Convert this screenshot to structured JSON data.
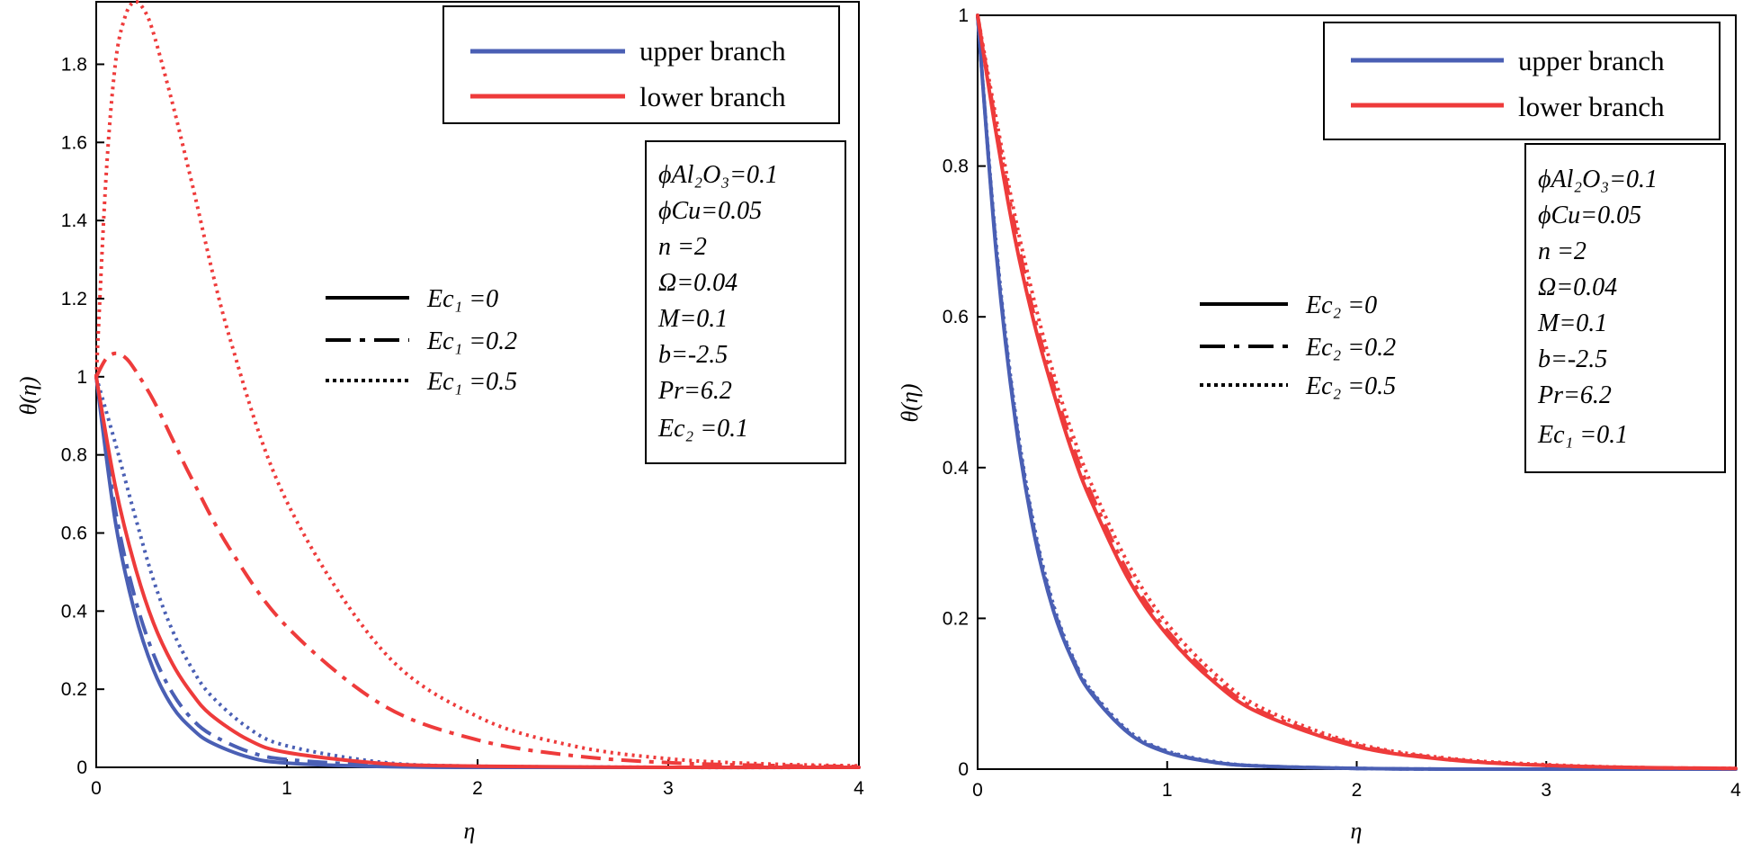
{
  "colors": {
    "upper": "#4a5fb4",
    "lower": "#ee3b3b",
    "axis": "#000000"
  },
  "chart_data": [
    {
      "type": "line",
      "title": "",
      "xlabel": "η",
      "ylabel": "θ(η)",
      "xlim": [
        0,
        4
      ],
      "ylim": [
        0,
        1.96
      ],
      "xticks": [
        "0",
        "1",
        "2",
        "3",
        "4"
      ],
      "yticks": [
        "0",
        "0.2",
        "0.4",
        "0.6",
        "0.8",
        "1",
        "1.2",
        "1.4",
        "1.6",
        "1.8"
      ],
      "legend": [
        "upper branch",
        "lower branch"
      ],
      "style_legend": [
        "Ec₁ =0",
        "Ec₁ =0.2",
        "Ec₁ =0.5"
      ],
      "params": [
        "ϕAl₂O₃=0.1",
        "ϕCu=0.05",
        "n =2",
        "Ω=0.04",
        "M=0.1",
        "b=-2.5",
        "Pr=6.2",
        "Ec₂ =0.1"
      ],
      "series": [
        {
          "name": "upper branch, Ec₁ =0",
          "branch": "upper",
          "dash": "solid",
          "x": [
            0,
            0.1,
            0.2,
            0.3,
            0.4,
            0.5,
            0.6,
            0.8,
            1.0,
            1.5,
            2,
            3,
            4
          ],
          "y": [
            1,
            0.63,
            0.4,
            0.25,
            0.155,
            0.1,
            0.064,
            0.026,
            0.011,
            0.002,
            0,
            0,
            0
          ]
        },
        {
          "name": "upper branch, Ec₁ =0.2",
          "branch": "upper",
          "dash": "dashdot",
          "x": [
            0,
            0.1,
            0.2,
            0.3,
            0.4,
            0.5,
            0.6,
            0.8,
            1.0,
            1.5,
            2,
            3,
            4
          ],
          "y": [
            1,
            0.66,
            0.44,
            0.29,
            0.19,
            0.125,
            0.085,
            0.04,
            0.02,
            0.005,
            0.001,
            0,
            0
          ]
        },
        {
          "name": "upper branch, Ec₁ =0.5",
          "branch": "upper",
          "dash": "dot",
          "x": [
            0,
            0.1,
            0.2,
            0.3,
            0.4,
            0.5,
            0.6,
            0.8,
            1.0,
            1.5,
            2,
            3,
            4
          ],
          "y": [
            1,
            0.83,
            0.65,
            0.48,
            0.35,
            0.255,
            0.185,
            0.1,
            0.055,
            0.013,
            0.003,
            0,
            0
          ]
        },
        {
          "name": "lower branch, Ec₁ =0",
          "branch": "lower",
          "dash": "solid",
          "x": [
            0,
            0.1,
            0.2,
            0.3,
            0.4,
            0.5,
            0.6,
            0.8,
            1.0,
            1.5,
            2,
            3,
            4
          ],
          "y": [
            1,
            0.72,
            0.52,
            0.37,
            0.265,
            0.19,
            0.135,
            0.07,
            0.038,
            0.01,
            0.003,
            0,
            0
          ]
        },
        {
          "name": "lower branch, Ec₁ =0.2",
          "branch": "lower",
          "dash": "dashdot",
          "x": [
            0,
            0.05,
            0.1,
            0.15,
            0.2,
            0.3,
            0.4,
            0.5,
            0.7,
            1.0,
            1.5,
            2,
            2.5,
            3,
            3.5,
            4
          ],
          "y": [
            1,
            1.045,
            1.06,
            1.05,
            1.02,
            0.94,
            0.84,
            0.74,
            0.56,
            0.36,
            0.16,
            0.07,
            0.03,
            0.012,
            0.005,
            0.002
          ]
        },
        {
          "name": "lower branch, Ec₁ =0.5",
          "branch": "lower",
          "dash": "dot",
          "x": [
            0,
            0.05,
            0.1,
            0.15,
            0.2,
            0.25,
            0.3,
            0.4,
            0.5,
            0.7,
            1.0,
            1.5,
            2,
            2.5,
            3,
            3.5,
            4
          ],
          "y": [
            1,
            1.5,
            1.8,
            1.92,
            1.96,
            1.94,
            1.88,
            1.7,
            1.5,
            1.1,
            0.68,
            0.3,
            0.13,
            0.055,
            0.022,
            0.009,
            0.004
          ]
        }
      ]
    },
    {
      "type": "line",
      "title": "",
      "xlabel": "η",
      "ylabel": "θ(η)",
      "xlim": [
        0,
        4
      ],
      "ylim": [
        0,
        1
      ],
      "xticks": [
        "0",
        "1",
        "2",
        "3",
        "4"
      ],
      "yticks": [
        "0",
        "0.2",
        "0.4",
        "0.6",
        "0.8",
        "1"
      ],
      "legend": [
        "upper branch",
        "lower branch"
      ],
      "style_legend": [
        "Ec₂ =0",
        "Ec₂ =0.2",
        "Ec₂ =0.5"
      ],
      "params": [
        "ϕAl₂O₃=0.1",
        "ϕCu=0.05",
        "n =2",
        "Ω=0.04",
        "M=0.1",
        "b=-2.5",
        "Pr=6.2",
        "Ec₁ =0.1"
      ],
      "series": [
        {
          "name": "upper branch, Ec₂ =0",
          "branch": "upper",
          "dash": "solid",
          "x": [
            0,
            0.1,
            0.2,
            0.3,
            0.4,
            0.5,
            0.6,
            0.8,
            1.0,
            1.25,
            1.5,
            2,
            2.5,
            3,
            4
          ],
          "y": [
            1,
            0.68,
            0.46,
            0.31,
            0.21,
            0.145,
            0.1,
            0.047,
            0.022,
            0.009,
            0.004,
            0.001,
            0,
            0,
            0
          ]
        },
        {
          "name": "upper branch, Ec₂ =0.2",
          "branch": "upper",
          "dash": "dashdot",
          "x": [
            0,
            0.1,
            0.2,
            0.3,
            0.4,
            0.5,
            0.6,
            0.8,
            1.0,
            1.25,
            1.5,
            2,
            2.5,
            3,
            4
          ],
          "y": [
            1,
            0.685,
            0.465,
            0.315,
            0.214,
            0.148,
            0.102,
            0.048,
            0.023,
            0.009,
            0.004,
            0.001,
            0,
            0,
            0
          ]
        },
        {
          "name": "upper branch, Ec₂ =0.5",
          "branch": "upper",
          "dash": "dot",
          "x": [
            0,
            0.1,
            0.2,
            0.3,
            0.4,
            0.5,
            0.6,
            0.8,
            1.0,
            1.25,
            1.5,
            2,
            2.5,
            3,
            4
          ],
          "y": [
            1,
            0.69,
            0.47,
            0.32,
            0.218,
            0.15,
            0.104,
            0.05,
            0.024,
            0.01,
            0.004,
            0.001,
            0,
            0,
            0
          ]
        },
        {
          "name": "lower branch, Ec₂ =0",
          "branch": "lower",
          "dash": "solid",
          "x": [
            0,
            0.1,
            0.2,
            0.3,
            0.4,
            0.5,
            0.6,
            0.8,
            1.0,
            1.25,
            1.5,
            2,
            2.5,
            3,
            3.5,
            4
          ],
          "y": [
            1,
            0.84,
            0.7,
            0.59,
            0.5,
            0.42,
            0.355,
            0.25,
            0.178,
            0.115,
            0.073,
            0.03,
            0.012,
            0.005,
            0.002,
            0.001
          ]
        },
        {
          "name": "lower branch, Ec₂ =0.2",
          "branch": "lower",
          "dash": "dashdot",
          "x": [
            0,
            0.1,
            0.2,
            0.3,
            0.4,
            0.5,
            0.6,
            0.8,
            1.0,
            1.25,
            1.5,
            2,
            2.5,
            3,
            3.5,
            4
          ],
          "y": [
            1,
            0.85,
            0.715,
            0.6,
            0.51,
            0.43,
            0.365,
            0.258,
            0.184,
            0.12,
            0.076,
            0.032,
            0.013,
            0.005,
            0.002,
            0.001
          ]
        },
        {
          "name": "lower branch, Ec₂ =0.5",
          "branch": "lower",
          "dash": "dot",
          "x": [
            0,
            0.1,
            0.2,
            0.3,
            0.4,
            0.5,
            0.6,
            0.8,
            1.0,
            1.25,
            1.5,
            2,
            2.5,
            3,
            3.5,
            4
          ],
          "y": [
            1,
            0.86,
            0.73,
            0.62,
            0.525,
            0.445,
            0.378,
            0.27,
            0.193,
            0.127,
            0.081,
            0.034,
            0.014,
            0.006,
            0.002,
            0.001
          ]
        }
      ]
    }
  ]
}
